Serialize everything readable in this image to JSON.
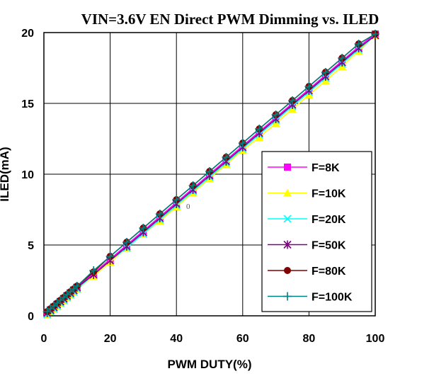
{
  "chart_data": {
    "type": "line",
    "title": "VIN=3.6V EN Direct PWM Dimming vs. ILED",
    "xlabel": "PWM DUTY(%)",
    "ylabel": "ILED(mA)",
    "xlim": [
      0,
      100
    ],
    "ylim": [
      0,
      20
    ],
    "xticks": [
      "0",
      "20",
      "40",
      "60",
      "80",
      "100"
    ],
    "yticks": [
      "0",
      "5",
      "10",
      "15",
      "20"
    ],
    "grid": true,
    "legend_position": "right",
    "stray_label": "0",
    "x": [
      1,
      2,
      3,
      4,
      5,
      6,
      7,
      8,
      9,
      10,
      15,
      20,
      25,
      30,
      35,
      40,
      45,
      50,
      55,
      60,
      65,
      70,
      75,
      80,
      85,
      90,
      95,
      100
    ],
    "series": [
      {
        "name": "F=8K",
        "color": "#ff00ff",
        "marker": "square",
        "values": [
          0.2,
          0.4,
          0.6,
          0.8,
          1.0,
          1.2,
          1.4,
          1.6,
          1.8,
          2.0,
          3.0,
          4.0,
          5.0,
          6.0,
          7.0,
          8.0,
          9.0,
          10.0,
          11.0,
          12.0,
          13.0,
          14.0,
          15.0,
          16.0,
          17.0,
          18.0,
          19.0,
          19.9
        ]
      },
      {
        "name": "F=10K",
        "color": "#ffff00",
        "marker": "triangle",
        "values": [
          0.1,
          0.3,
          0.5,
          0.7,
          0.9,
          1.1,
          1.3,
          1.5,
          1.7,
          1.9,
          2.8,
          3.8,
          4.8,
          5.8,
          6.7,
          7.7,
          8.7,
          9.7,
          10.7,
          11.7,
          12.6,
          13.6,
          14.6,
          15.6,
          16.6,
          17.6,
          18.7,
          19.8
        ]
      },
      {
        "name": "F=20K",
        "color": "#00ffff",
        "marker": "x",
        "values": [
          0.1,
          0.3,
          0.5,
          0.7,
          0.9,
          1.1,
          1.3,
          1.5,
          1.7,
          1.9,
          2.9,
          3.9,
          4.8,
          5.8,
          6.8,
          7.8,
          8.8,
          9.8,
          10.8,
          11.8,
          12.8,
          13.8,
          14.8,
          15.8,
          16.8,
          17.8,
          18.8,
          19.8
        ]
      },
      {
        "name": "F=50K",
        "color": "#800080",
        "marker": "asterisk",
        "values": [
          0.2,
          0.4,
          0.6,
          0.8,
          1.0,
          1.2,
          1.4,
          1.6,
          1.8,
          2.0,
          2.9,
          3.9,
          4.9,
          5.9,
          6.9,
          7.9,
          8.9,
          9.9,
          10.9,
          11.9,
          12.9,
          13.9,
          14.9,
          15.9,
          16.9,
          17.9,
          18.9,
          19.8
        ]
      },
      {
        "name": "F=80K",
        "color": "#800000",
        "marker": "circle",
        "values": [
          0.3,
          0.5,
          0.7,
          0.9,
          1.1,
          1.3,
          1.5,
          1.7,
          1.9,
          2.1,
          3.1,
          4.2,
          5.2,
          6.2,
          7.2,
          8.2,
          9.2,
          10.2,
          11.2,
          12.2,
          13.2,
          14.2,
          15.2,
          16.2,
          17.2,
          18.2,
          19.2,
          19.9
        ]
      },
      {
        "name": "F=100K",
        "color": "#008080",
        "marker": "plus",
        "values": [
          0.3,
          0.5,
          0.7,
          0.9,
          1.1,
          1.3,
          1.5,
          1.7,
          1.9,
          2.1,
          3.2,
          4.2,
          5.2,
          6.2,
          7.2,
          8.2,
          9.2,
          10.2,
          11.2,
          12.2,
          13.2,
          14.2,
          15.2,
          16.2,
          17.2,
          18.2,
          19.2,
          19.9
        ]
      }
    ]
  }
}
